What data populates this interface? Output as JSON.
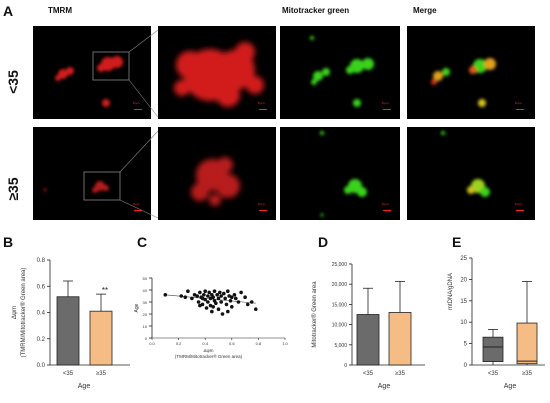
{
  "panel_letters": {
    "a": "A",
    "b": "B",
    "c": "C",
    "d": "D",
    "e": "E"
  },
  "column_headers": [
    "TMRM",
    "Mitotracker green",
    "Merge"
  ],
  "row_labels": [
    "<35",
    "≥35"
  ],
  "scale_bar_text": "8 μm",
  "colors": {
    "under35": "#6b6b6b",
    "over35": "#f5bd85",
    "tmrm": "#d21f1f",
    "mito": "#3ad21f",
    "merge": "#e0a01f"
  },
  "chart_data": [
    {
      "id": "B",
      "type": "bar",
      "categories": [
        "<35",
        "≥35"
      ],
      "values": [
        0.52,
        0.41
      ],
      "errors": [
        0.12,
        0.13
      ],
      "significance": [
        "",
        "**"
      ],
      "ylabel_line1": "Δψm",
      "ylabel_line2": "(TMRM/Mitotracker® Green area)",
      "xlabel": "Age",
      "ylim": [
        0,
        0.8
      ],
      "yticks": [
        "0.0",
        "0.2",
        "0.4",
        "0.6",
        "0.8"
      ]
    },
    {
      "id": "C",
      "type": "scatter",
      "xlabel_line1": "Δψm",
      "xlabel_line2": "(TMRM/Mitotracker® Green area)",
      "ylabel": "Age",
      "xlim": [
        0,
        1.0
      ],
      "ylim": [
        0,
        50
      ],
      "xticks": [
        "0.0",
        "0.2",
        "0.4",
        "0.6",
        "0.8",
        "1.0"
      ],
      "yticks": [
        "0",
        "10",
        "20",
        "30",
        "40",
        "50"
      ],
      "trend": [
        [
          0.1,
          36
        ],
        [
          0.78,
          29
        ]
      ],
      "points": [
        [
          0.1,
          36
        ],
        [
          0.22,
          35
        ],
        [
          0.25,
          34
        ],
        [
          0.27,
          39
        ],
        [
          0.3,
          33
        ],
        [
          0.32,
          36
        ],
        [
          0.34,
          35
        ],
        [
          0.35,
          30
        ],
        [
          0.36,
          38
        ],
        [
          0.37,
          34
        ],
        [
          0.38,
          33
        ],
        [
          0.38,
          28
        ],
        [
          0.39,
          36
        ],
        [
          0.4,
          39
        ],
        [
          0.4,
          32
        ],
        [
          0.41,
          25
        ],
        [
          0.42,
          35
        ],
        [
          0.42,
          30
        ],
        [
          0.43,
          38
        ],
        [
          0.44,
          33
        ],
        [
          0.44,
          27
        ],
        [
          0.45,
          36
        ],
        [
          0.45,
          22
        ],
        [
          0.46,
          34
        ],
        [
          0.47,
          39
        ],
        [
          0.47,
          31
        ],
        [
          0.48,
          29
        ],
        [
          0.49,
          36
        ],
        [
          0.5,
          33
        ],
        [
          0.5,
          24
        ],
        [
          0.51,
          38
        ],
        [
          0.52,
          35
        ],
        [
          0.52,
          30
        ],
        [
          0.53,
          20
        ],
        [
          0.54,
          37
        ],
        [
          0.55,
          33
        ],
        [
          0.56,
          28
        ],
        [
          0.57,
          39
        ],
        [
          0.58,
          35
        ],
        [
          0.59,
          31
        ],
        [
          0.6,
          26
        ],
        [
          0.62,
          36
        ],
        [
          0.63,
          33
        ],
        [
          0.65,
          30
        ],
        [
          0.67,
          38
        ],
        [
          0.7,
          34
        ],
        [
          0.72,
          28
        ],
        [
          0.75,
          30
        ],
        [
          0.78,
          24
        ],
        [
          0.36,
          27
        ],
        [
          0.46,
          26
        ],
        [
          0.57,
          22
        ],
        [
          0.6,
          34
        ]
      ]
    },
    {
      "id": "D",
      "type": "bar",
      "categories": [
        "<35",
        "≥35"
      ],
      "values": [
        12500,
        13000
      ],
      "errors": [
        6500,
        7700
      ],
      "ylabel": "Mitotracker® Green area",
      "xlabel": "Age",
      "ylim": [
        0,
        25000
      ],
      "yticks": [
        "0",
        "5,000",
        "10,000",
        "15,000",
        "20,000",
        "25,000"
      ]
    },
    {
      "id": "E",
      "type": "boxplot",
      "categories": [
        "<35",
        "≥35"
      ],
      "boxes": [
        {
          "min": 0,
          "q1": 0.8,
          "median": 4.2,
          "q3": 6.5,
          "max": 8.3
        },
        {
          "min": 0,
          "q1": 0.3,
          "median": 0.9,
          "q3": 9.8,
          "max": 19.5
        }
      ],
      "ylabel": "mtDNA/gDNA",
      "xlabel": "Age",
      "ylim": [
        0,
        25
      ],
      "yticks": [
        "0",
        "5",
        "10",
        "15",
        "20",
        "25"
      ]
    }
  ]
}
